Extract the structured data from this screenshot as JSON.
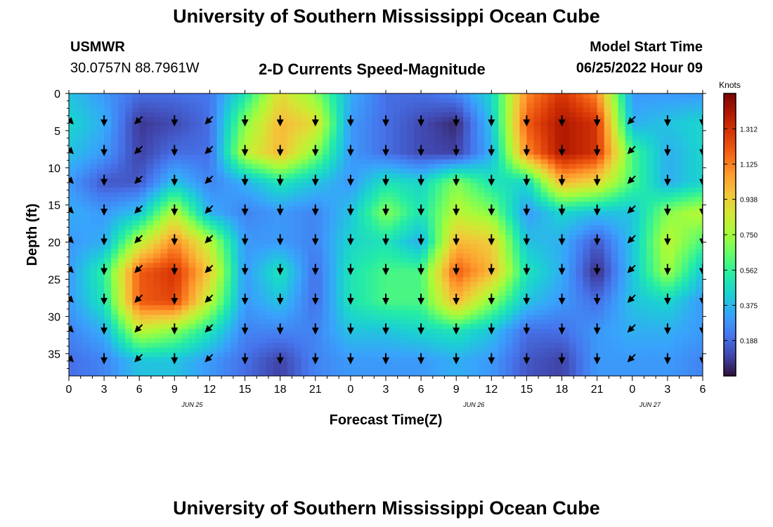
{
  "header": {
    "title": "University of Southern Mississippi Ocean Cube",
    "station": "USMWR",
    "coords": "30.0757N  88.7961W",
    "subtitle": "2-D Currents Speed-Magnitude",
    "model_label": "Model Start Time",
    "model_time": "06/25/2022 Hour 09"
  },
  "footer": {
    "title": "University of Southern Mississippi Ocean Cube"
  },
  "chart_data": {
    "type": "heatmap",
    "xlabel": "Forecast Time(Z)",
    "ylabel": "Depth (ft)",
    "x_tick_labels": [
      "0",
      "3",
      "6",
      "9",
      "12",
      "15",
      "18",
      "21",
      "0",
      "3",
      "6",
      "9",
      "12",
      "15",
      "18",
      "21",
      "0",
      "3",
      "6"
    ],
    "date_labels": [
      {
        "text": "JUN 25",
        "hour": 10.5
      },
      {
        "text": "JUN 26",
        "hour": 34.5
      },
      {
        "text": "JUN 27",
        "hour": 49.5
      }
    ],
    "x_range_hours": [
      0,
      54
    ],
    "y_tick_labels": [
      "0",
      "5",
      "10",
      "15",
      "20",
      "25",
      "30",
      "35"
    ],
    "y_ticks": [
      0,
      5,
      10,
      15,
      20,
      25,
      30,
      35
    ],
    "ylim": [
      0,
      38
    ],
    "y_inverted": true,
    "colorbar": {
      "title": "Knots",
      "ticks": [
        "1.312",
        "1.125",
        "0.938",
        "0.750",
        "0.562",
        "0.375",
        "0.188"
      ],
      "tick_values": [
        1.312,
        1.125,
        0.938,
        0.75,
        0.562,
        0.375,
        0.188
      ],
      "range": [
        0,
        1.5
      ],
      "colormap": [
        "#30123b",
        "#4145ab",
        "#4675ed",
        "#39a2fc",
        "#1bcfd4",
        "#24eca6",
        "#61fc6c",
        "#a4fc3b",
        "#d1e834",
        "#f3c63a",
        "#fe9b2d",
        "#f36315",
        "#d93806",
        "#b11901",
        "#7a0402"
      ]
    },
    "x_hours": [
      0,
      3,
      6,
      9,
      12,
      15,
      18,
      21,
      24,
      27,
      30,
      33,
      36,
      39,
      42,
      45,
      48,
      51,
      54
    ],
    "depths": [
      0,
      4,
      8,
      12,
      16,
      20,
      24,
      28,
      32,
      36
    ],
    "speed": [
      [
        0.4,
        0.3,
        0.2,
        0.2,
        0.22,
        0.5,
        0.9,
        0.7,
        0.35,
        0.2,
        0.2,
        0.25,
        0.45,
        1.1,
        1.3,
        1.1,
        0.3,
        0.3,
        0.3
      ],
      [
        0.45,
        0.35,
        0.08,
        0.12,
        0.2,
        0.7,
        1.0,
        0.9,
        0.3,
        0.2,
        0.12,
        0.05,
        0.4,
        1.2,
        1.4,
        1.3,
        0.35,
        0.4,
        0.45
      ],
      [
        0.4,
        0.3,
        0.1,
        0.2,
        0.2,
        0.8,
        1.0,
        0.7,
        0.3,
        0.2,
        0.12,
        0.1,
        0.35,
        1.1,
        1.4,
        1.3,
        0.6,
        0.35,
        0.45
      ],
      [
        0.3,
        0.15,
        0.15,
        0.4,
        0.25,
        0.35,
        0.5,
        0.4,
        0.3,
        0.5,
        0.45,
        0.7,
        0.5,
        0.45,
        1.0,
        0.9,
        0.6,
        0.35,
        0.45
      ],
      [
        0.35,
        0.3,
        0.4,
        0.8,
        0.35,
        0.25,
        0.3,
        0.25,
        0.4,
        0.7,
        0.5,
        0.8,
        0.7,
        0.3,
        0.45,
        0.4,
        0.4,
        0.7,
        0.8
      ],
      [
        0.3,
        0.35,
        0.8,
        1.1,
        0.8,
        0.3,
        0.3,
        0.25,
        0.45,
        0.5,
        0.35,
        1.0,
        0.95,
        0.4,
        0.35,
        0.15,
        0.4,
        0.8,
        0.6
      ],
      [
        0.3,
        0.55,
        1.2,
        1.3,
        0.95,
        0.3,
        0.5,
        0.2,
        0.5,
        0.6,
        0.6,
        1.2,
        1.0,
        0.5,
        0.35,
        0.05,
        0.4,
        0.75,
        0.4
      ],
      [
        0.3,
        0.5,
        1.2,
        1.25,
        0.8,
        0.3,
        0.4,
        0.2,
        0.5,
        0.6,
        0.6,
        1.0,
        0.7,
        0.4,
        0.3,
        0.2,
        0.4,
        0.45,
        0.3
      ],
      [
        0.25,
        0.35,
        0.8,
        0.7,
        0.5,
        0.25,
        0.25,
        0.25,
        0.4,
        0.4,
        0.45,
        0.5,
        0.4,
        0.2,
        0.2,
        0.3,
        0.35,
        0.35,
        0.3
      ],
      [
        0.2,
        0.25,
        0.4,
        0.4,
        0.3,
        0.2,
        0.1,
        0.25,
        0.3,
        0.3,
        0.3,
        0.35,
        0.3,
        0.15,
        0.1,
        0.3,
        0.3,
        0.3,
        0.25
      ]
    ],
    "arrow_depths": [
      3.5,
      7.5,
      11.5,
      15.5,
      19.5,
      23.5,
      27.5,
      31.5,
      35.5
    ],
    "arrow_directions_deg": [
      [
        45,
        90,
        135,
        90,
        135,
        90,
        90,
        90,
        90,
        90,
        90,
        90,
        90,
        90,
        90,
        90,
        135,
        90,
        90
      ],
      [
        45,
        90,
        135,
        90,
        135,
        90,
        90,
        90,
        90,
        90,
        90,
        90,
        90,
        90,
        90,
        90,
        135,
        90,
        90
      ],
      [
        45,
        90,
        135,
        90,
        135,
        90,
        90,
        90,
        90,
        90,
        90,
        90,
        90,
        90,
        90,
        90,
        135,
        90,
        90
      ],
      [
        45,
        90,
        135,
        90,
        135,
        90,
        90,
        90,
        90,
        90,
        90,
        90,
        90,
        90,
        90,
        90,
        135,
        90,
        90
      ],
      [
        45,
        90,
        135,
        90,
        135,
        90,
        90,
        90,
        90,
        90,
        90,
        90,
        90,
        90,
        90,
        90,
        135,
        90,
        90
      ],
      [
        45,
        90,
        135,
        90,
        135,
        90,
        90,
        90,
        90,
        90,
        90,
        90,
        90,
        90,
        90,
        90,
        135,
        90,
        90
      ],
      [
        45,
        90,
        135,
        90,
        135,
        90,
        90,
        90,
        90,
        90,
        90,
        90,
        90,
        90,
        90,
        90,
        135,
        90,
        90
      ],
      [
        45,
        90,
        135,
        90,
        135,
        90,
        90,
        90,
        90,
        90,
        90,
        90,
        90,
        90,
        90,
        90,
        135,
        90,
        90
      ],
      [
        45,
        90,
        135,
        90,
        135,
        90,
        90,
        90,
        90,
        90,
        90,
        90,
        90,
        90,
        90,
        90,
        135,
        90,
        90
      ]
    ]
  }
}
